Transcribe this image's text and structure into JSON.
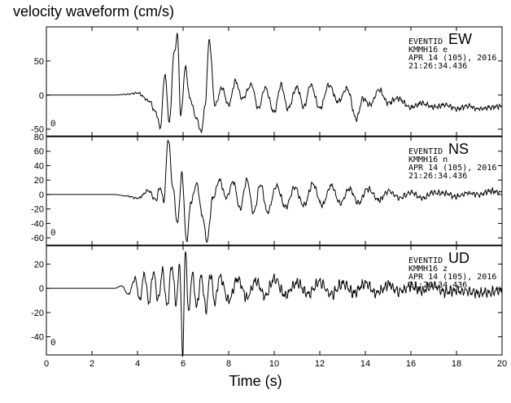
{
  "chart_data": {
    "type": "line",
    "title": "velocity waveform (cm/s)",
    "xlabel": "Time (s)",
    "xlim": [
      0,
      20
    ],
    "xticks": [
      0,
      2,
      4,
      6,
      8,
      10,
      12,
      14,
      16,
      18,
      20
    ],
    "grid": false,
    "panels": [
      {
        "name": "EW",
        "yticks": [
          -50,
          0,
          50
        ],
        "ylim": [
          -60,
          100
        ],
        "info": [
          "EVENTID",
          "KMMH16   e",
          "APR 14 (105), 2016",
          "21:26:34.436"
        ],
        "zero_marker": "0",
        "key_points": [
          [
            0,
            0
          ],
          [
            3,
            0
          ],
          [
            3.5,
            1
          ],
          [
            4,
            3
          ],
          [
            4.5,
            -8
          ],
          [
            4.8,
            -25
          ],
          [
            5.0,
            -48
          ],
          [
            5.2,
            30
          ],
          [
            5.4,
            -40
          ],
          [
            5.6,
            60
          ],
          [
            5.75,
            88
          ],
          [
            5.9,
            -30
          ],
          [
            6.1,
            40
          ],
          [
            6.3,
            -5
          ],
          [
            6.6,
            -35
          ],
          [
            6.8,
            -55
          ],
          [
            6.95,
            -20
          ],
          [
            7.15,
            80
          ],
          [
            7.4,
            -15
          ],
          [
            7.7,
            10
          ],
          [
            8.0,
            -15
          ],
          [
            8.3,
            20
          ],
          [
            8.6,
            -5
          ],
          [
            9.0,
            15
          ],
          [
            9.3,
            -20
          ],
          [
            9.6,
            10
          ],
          [
            10.0,
            -25
          ],
          [
            10.3,
            15
          ],
          [
            10.6,
            -20
          ],
          [
            11.0,
            12
          ],
          [
            11.3,
            -18
          ],
          [
            11.6,
            15
          ],
          [
            12.0,
            -20
          ],
          [
            12.4,
            15
          ],
          [
            12.8,
            -10
          ],
          [
            13.2,
            10
          ],
          [
            13.6,
            -35
          ],
          [
            13.9,
            -5
          ],
          [
            14.2,
            -15
          ],
          [
            14.6,
            8
          ],
          [
            15.0,
            -12
          ],
          [
            15.4,
            -5
          ],
          [
            16.0,
            -18
          ],
          [
            16.5,
            -12
          ],
          [
            17.0,
            -18
          ],
          [
            17.5,
            -14
          ],
          [
            18.0,
            -20
          ],
          [
            18.5,
            -16
          ],
          [
            19.0,
            -20
          ],
          [
            19.5,
            -18
          ],
          [
            20.0,
            -16
          ]
        ]
      },
      {
        "name": "NS",
        "yticks": [
          -60,
          -40,
          -20,
          0,
          20,
          40,
          60,
          80
        ],
        "ylim": [
          -70,
          80
        ],
        "info": [
          "EVENTID",
          "KMMH16   n",
          "APR 14 (105), 2016",
          "21:26:34.436"
        ],
        "zero_marker": "0",
        "key_points": [
          [
            0,
            0
          ],
          [
            3,
            0
          ],
          [
            3.5,
            -2
          ],
          [
            4,
            -5
          ],
          [
            4.5,
            5
          ],
          [
            4.8,
            -8
          ],
          [
            5.0,
            10
          ],
          [
            5.15,
            -10
          ],
          [
            5.35,
            78
          ],
          [
            5.55,
            10
          ],
          [
            5.75,
            -40
          ],
          [
            5.95,
            28
          ],
          [
            6.15,
            -65
          ],
          [
            6.35,
            -10
          ],
          [
            6.6,
            15
          ],
          [
            6.85,
            -30
          ],
          [
            7.05,
            -65
          ],
          [
            7.3,
            -5
          ],
          [
            7.6,
            20
          ],
          [
            7.9,
            -5
          ],
          [
            8.2,
            18
          ],
          [
            8.5,
            -20
          ],
          [
            8.8,
            20
          ],
          [
            9.1,
            -25
          ],
          [
            9.4,
            15
          ],
          [
            9.7,
            -25
          ],
          [
            10.1,
            12
          ],
          [
            10.5,
            -18
          ],
          [
            10.9,
            10
          ],
          [
            11.3,
            -15
          ],
          [
            11.7,
            15
          ],
          [
            12.1,
            -15
          ],
          [
            12.5,
            12
          ],
          [
            12.9,
            -12
          ],
          [
            13.3,
            8
          ],
          [
            13.7,
            -12
          ],
          [
            14.1,
            8
          ],
          [
            14.6,
            -8
          ],
          [
            15.0,
            5
          ],
          [
            15.5,
            -5
          ],
          [
            16.0,
            3
          ],
          [
            16.5,
            -5
          ],
          [
            17.0,
            3
          ],
          [
            17.5,
            2
          ],
          [
            18.0,
            -3
          ],
          [
            18.5,
            2
          ],
          [
            19.0,
            0
          ],
          [
            19.5,
            5
          ],
          [
            20.0,
            3
          ]
        ]
      },
      {
        "name": "UD",
        "yticks": [
          -40,
          -20,
          0,
          20
        ],
        "ylim": [
          -55,
          35
        ],
        "info": [
          "EVENTID",
          "KMMH16   z",
          "APR 14 (105), 2016",
          "21:26:34.436"
        ],
        "zero_marker": "0",
        "key_points": [
          [
            0,
            0
          ],
          [
            3,
            0
          ],
          [
            3.3,
            2
          ],
          [
            3.6,
            -5
          ],
          [
            3.9,
            8
          ],
          [
            4.1,
            -10
          ],
          [
            4.3,
            12
          ],
          [
            4.5,
            -12
          ],
          [
            4.7,
            14
          ],
          [
            4.9,
            -10
          ],
          [
            5.1,
            15
          ],
          [
            5.3,
            -15
          ],
          [
            5.5,
            18
          ],
          [
            5.7,
            -12
          ],
          [
            5.85,
            20
          ],
          [
            5.98,
            -55
          ],
          [
            6.1,
            30
          ],
          [
            6.25,
            -20
          ],
          [
            6.4,
            12
          ],
          [
            6.6,
            -15
          ],
          [
            6.8,
            10
          ],
          [
            7.0,
            -18
          ],
          [
            7.2,
            12
          ],
          [
            7.4,
            -12
          ],
          [
            7.6,
            10
          ],
          [
            8.0,
            -10
          ],
          [
            8.4,
            8
          ],
          [
            8.8,
            -8
          ],
          [
            9.2,
            6
          ],
          [
            9.6,
            -6
          ],
          [
            10.0,
            8
          ],
          [
            10.5,
            -6
          ],
          [
            11.0,
            5
          ],
          [
            11.5,
            -5
          ],
          [
            12.0,
            5
          ],
          [
            12.5,
            -5
          ],
          [
            13.0,
            4
          ],
          [
            13.5,
            -4
          ],
          [
            14.0,
            4
          ],
          [
            14.5,
            -4
          ],
          [
            15.0,
            3
          ],
          [
            15.5,
            -3
          ],
          [
            16.0,
            2
          ],
          [
            16.5,
            -2
          ],
          [
            17.0,
            2
          ],
          [
            17.5,
            -3
          ],
          [
            18.0,
            -2
          ],
          [
            18.5,
            -3
          ],
          [
            19.0,
            -4
          ],
          [
            19.5,
            -3
          ],
          [
            20.0,
            -2
          ]
        ]
      }
    ]
  }
}
